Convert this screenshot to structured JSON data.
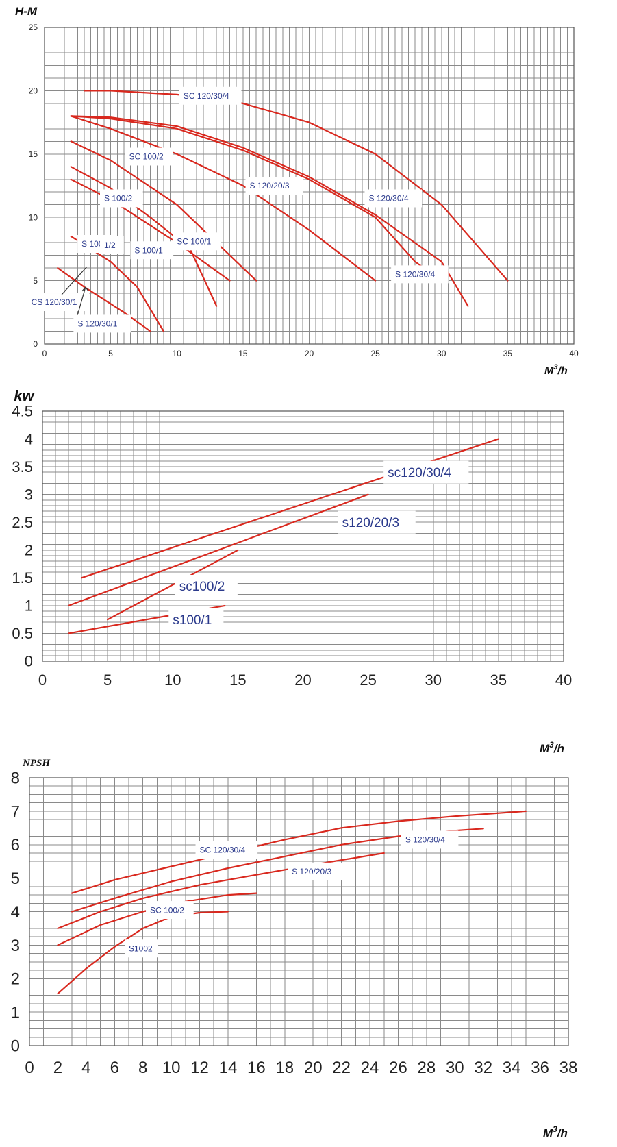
{
  "chart_data": [
    {
      "type": "line",
      "ylabel": "H-M",
      "xlabel_main": "M",
      "xlabel_sup": "3",
      "xlabel_tail": "/h",
      "xlim": [
        0,
        40
      ],
      "ylim": [
        0,
        25
      ],
      "x_ticks": [
        "0",
        "5",
        "10",
        "15",
        "20",
        "25",
        "30",
        "35",
        "40"
      ],
      "y_ticks": [
        "0",
        "5",
        "10",
        "15",
        "20",
        "25"
      ],
      "grid": true,
      "series": [
        {
          "points": [
            [
              3,
              20
            ],
            [
              5,
              20
            ],
            [
              10,
              19.7
            ],
            [
              15,
              19
            ],
            [
              20,
              17.5
            ],
            [
              25,
              15
            ],
            [
              30,
              11
            ],
            [
              35,
              5
            ]
          ]
        },
        {
          "points": [
            [
              2,
              18
            ],
            [
              5,
              17.8
            ],
            [
              10,
              17
            ],
            [
              15,
              15.3
            ],
            [
              20,
              13
            ],
            [
              25,
              10
            ],
            [
              28,
              6.5
            ],
            [
              30,
              5
            ]
          ]
        },
        {
          "points": [
            [
              2,
              18
            ],
            [
              5,
              17.9
            ],
            [
              10,
              17.2
            ],
            [
              15,
              15.5
            ],
            [
              20,
              13.2
            ],
            [
              25,
              10.2
            ],
            [
              30,
              6.5
            ],
            [
              32,
              3
            ]
          ]
        },
        {
          "points": [
            [
              2,
              18
            ],
            [
              5,
              17
            ],
            [
              10,
              15
            ],
            [
              15,
              12.5
            ],
            [
              20,
              9
            ],
            [
              25,
              5
            ]
          ]
        },
        {
          "points": [
            [
              2,
              16
            ],
            [
              5,
              14.5
            ],
            [
              10,
              11
            ],
            [
              14,
              7
            ],
            [
              16,
              5
            ]
          ]
        },
        {
          "points": [
            [
              2,
              14
            ],
            [
              5,
              12.3
            ],
            [
              8,
              10
            ],
            [
              11,
              7.5
            ],
            [
              13,
              3
            ]
          ]
        },
        {
          "points": [
            [
              2,
              13
            ],
            [
              5,
              11.4
            ],
            [
              10,
              8
            ],
            [
              14,
              5
            ]
          ]
        },
        {
          "points": [
            [
              2,
              8.5
            ],
            [
              5,
              6.5
            ],
            [
              7,
              4.5
            ],
            [
              9,
              1
            ]
          ]
        },
        {
          "points": [
            [
              1,
              6
            ],
            [
              3,
              4.5
            ],
            [
              6,
              2.5
            ],
            [
              8,
              1
            ]
          ]
        }
      ],
      "annotations": [
        {
          "text": "SC 120/30/4",
          "at": [
            10.5,
            19.6
          ]
        },
        {
          "text": "S 120/30/4",
          "at": [
            24.5,
            11.5
          ]
        },
        {
          "text": "S 120/20/3",
          "at": [
            15.5,
            12.5
          ]
        },
        {
          "text": "S 120/30/4",
          "at": [
            26.5,
            5.5
          ]
        },
        {
          "text": "SC 100/2",
          "at": [
            6.4,
            14.8
          ]
        },
        {
          "text": "S 100/2",
          "at": [
            4.5,
            11.5
          ]
        },
        {
          "text": "SC 100/1",
          "at": [
            10,
            8.1
          ]
        },
        {
          "text": "S 100/1",
          "at": [
            6.8,
            7.4
          ]
        },
        {
          "text": "S 100/",
          "at": [
            2.8,
            7.9
          ]
        },
        {
          "text": "1/2",
          "at": [
            4.5,
            7.8
          ]
        },
        {
          "text": "CS 120/30/1",
          "at": [
            -1,
            3.3
          ]
        },
        {
          "text": "S 120/30/1",
          "at": [
            2.5,
            1.6
          ]
        }
      ]
    },
    {
      "type": "line",
      "ylabel": "kw",
      "xlabel_main": "M",
      "xlabel_sup": "3",
      "xlabel_tail": "/h",
      "xlim": [
        0,
        40
      ],
      "ylim": [
        0,
        4.5
      ],
      "x_ticks": [
        "0",
        "5",
        "10",
        "15",
        "20",
        "25",
        "30",
        "35",
        "40"
      ],
      "y_ticks": [
        "0",
        "0.5",
        "1",
        "1.5",
        "2",
        "2.5",
        "3",
        "3.5",
        "4",
        "4.5"
      ],
      "grid": true,
      "series": [
        {
          "points": [
            [
              3,
              1.5
            ],
            [
              35,
              4
            ]
          ]
        },
        {
          "points": [
            [
              2,
              1
            ],
            [
              25,
              3
            ]
          ]
        },
        {
          "points": [
            [
              5,
              0.75
            ],
            [
              15,
              2
            ]
          ]
        },
        {
          "points": [
            [
              2,
              0.5
            ],
            [
              14,
              1
            ]
          ]
        }
      ],
      "annotations": [
        {
          "text": "sc120/30/4",
          "at": [
            26.5,
            3.4
          ]
        },
        {
          "text": "s120/20/3",
          "at": [
            23,
            2.5
          ]
        },
        {
          "text": "sc100/2",
          "at": [
            10.5,
            1.35
          ]
        },
        {
          "text": "s100/1",
          "at": [
            10,
            0.75
          ]
        }
      ]
    },
    {
      "type": "line",
      "ylabel": "NPSH",
      "xlabel_main": "M",
      "xlabel_sup": "3",
      "xlabel_tail": "/h",
      "xlim": [
        0,
        38
      ],
      "ylim": [
        0,
        8
      ],
      "x_ticks": [
        "0",
        "2",
        "4",
        "6",
        "8",
        "10",
        "12",
        "14",
        "16",
        "18",
        "20",
        "22",
        "24",
        "26",
        "28",
        "30",
        "32",
        "34",
        "36",
        "38"
      ],
      "y_ticks": [
        "0",
        "1",
        "2",
        "3",
        "4",
        "5",
        "6",
        "7",
        "8"
      ],
      "grid": true,
      "series": [
        {
          "points": [
            [
              3,
              4.55
            ],
            [
              6,
              4.95
            ],
            [
              10,
              5.35
            ],
            [
              14,
              5.75
            ],
            [
              18,
              6.15
            ],
            [
              22,
              6.5
            ],
            [
              26,
              6.7
            ],
            [
              30,
              6.85
            ],
            [
              35,
              7
            ]
          ]
        },
        {
          "points": [
            [
              3,
              4
            ],
            [
              6,
              4.4
            ],
            [
              10,
              4.9
            ],
            [
              14,
              5.3
            ],
            [
              18,
              5.65
            ],
            [
              22,
              6
            ],
            [
              26,
              6.25
            ],
            [
              30,
              6.42
            ],
            [
              32,
              6.48
            ]
          ]
        },
        {
          "points": [
            [
              2,
              3.5
            ],
            [
              5,
              4
            ],
            [
              8,
              4.4
            ],
            [
              12,
              4.8
            ],
            [
              16,
              5.1
            ],
            [
              20,
              5.4
            ],
            [
              25,
              5.75
            ]
          ]
        },
        {
          "points": [
            [
              2,
              3
            ],
            [
              5,
              3.6
            ],
            [
              8,
              4
            ],
            [
              11,
              4.3
            ],
            [
              14,
              4.5
            ],
            [
              16,
              4.55
            ]
          ]
        },
        {
          "points": [
            [
              2,
              1.55
            ],
            [
              4,
              2.3
            ],
            [
              6,
              2.95
            ],
            [
              8,
              3.5
            ],
            [
              10,
              3.85
            ],
            [
              12,
              3.97
            ],
            [
              14,
              4
            ]
          ]
        }
      ],
      "annotations": [
        {
          "text": "SC 120/30/4",
          "at": [
            12,
            5.85
          ]
        },
        {
          "text": "S 120/30/4",
          "at": [
            26.5,
            6.15
          ]
        },
        {
          "text": "S 120/20/3",
          "at": [
            18.5,
            5.2
          ]
        },
        {
          "text": "SC 100/2",
          "at": [
            8.5,
            4.05
          ]
        },
        {
          "text": "S1002",
          "at": [
            7,
            2.9
          ]
        }
      ]
    }
  ],
  "colors": {
    "line": "#d9281e",
    "label_text": "#2b3a8c",
    "grid": "#8a8a8a"
  }
}
